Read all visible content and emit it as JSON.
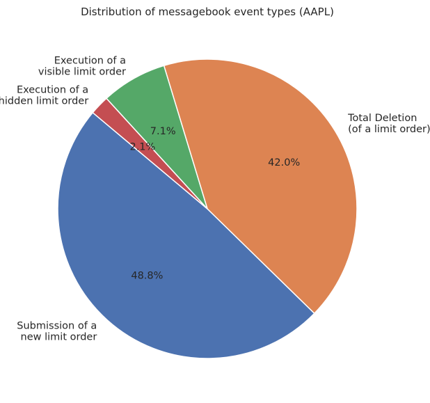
{
  "chart_data": {
    "type": "pie",
    "title": "Distribution of messagebook event types (AAPL)",
    "start_angle_deg": 140,
    "direction": "counterclockwise",
    "slices": [
      {
        "label": [
          "Submission of a",
          "new limit order"
        ],
        "value": 48.8,
        "pct_label": "48.8%",
        "color": "#4c72b0"
      },
      {
        "label": [
          "Total Deletion",
          "(of a limit order)"
        ],
        "value": 42.0,
        "pct_label": "42.0%",
        "color": "#dd8452"
      },
      {
        "label": [
          "Execution of a",
          "visible limit order"
        ],
        "value": 7.1,
        "pct_label": "7.1%",
        "color": "#55a868"
      },
      {
        "label": [
          "Execution of a",
          "hidden limit order"
        ],
        "value": 2.1,
        "pct_label": "2.1%",
        "color": "#c44e52"
      }
    ]
  }
}
